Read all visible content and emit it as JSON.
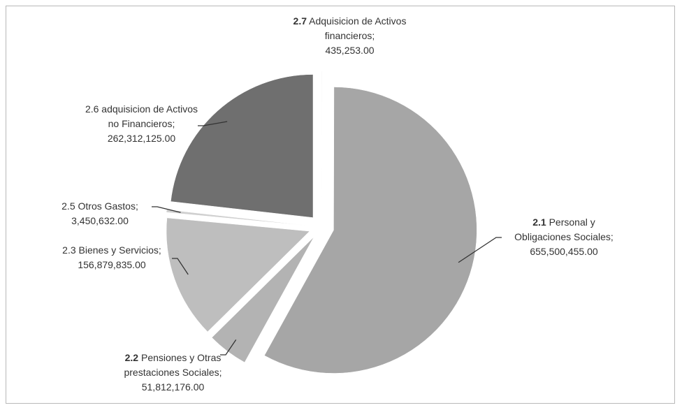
{
  "chart_data": {
    "type": "pie",
    "codes": [
      "2.7",
      "2.1",
      "2.2",
      "2.3",
      "2.5",
      "2.6"
    ],
    "code_bold": [
      true,
      true,
      true,
      false,
      false,
      false
    ],
    "categories": [
      "Adquisicion de Activos financieros",
      "Personal y Obligaciones Sociales",
      "Pensiones y Otras prestaciones Sociales",
      "Bienes y Servicios",
      "Otros Gastos",
      "adquisicion de Activos no Financieros"
    ],
    "label_separator": ";",
    "values": [
      435253,
      655500455,
      51812176,
      156879835,
      3450632,
      262312125
    ],
    "value_labels": [
      "435,253.00",
      "655,500,455.00",
      "51,812,176.00",
      "156,879,835.00",
      "3,450,632.00",
      "262,312,125.00"
    ],
    "colors": [
      "#d4d4d4",
      "#a6a6a6",
      "#b3b3b3",
      "#bebebe",
      "#d0d0d0",
      "#6f6f6f"
    ],
    "exploded": true
  }
}
